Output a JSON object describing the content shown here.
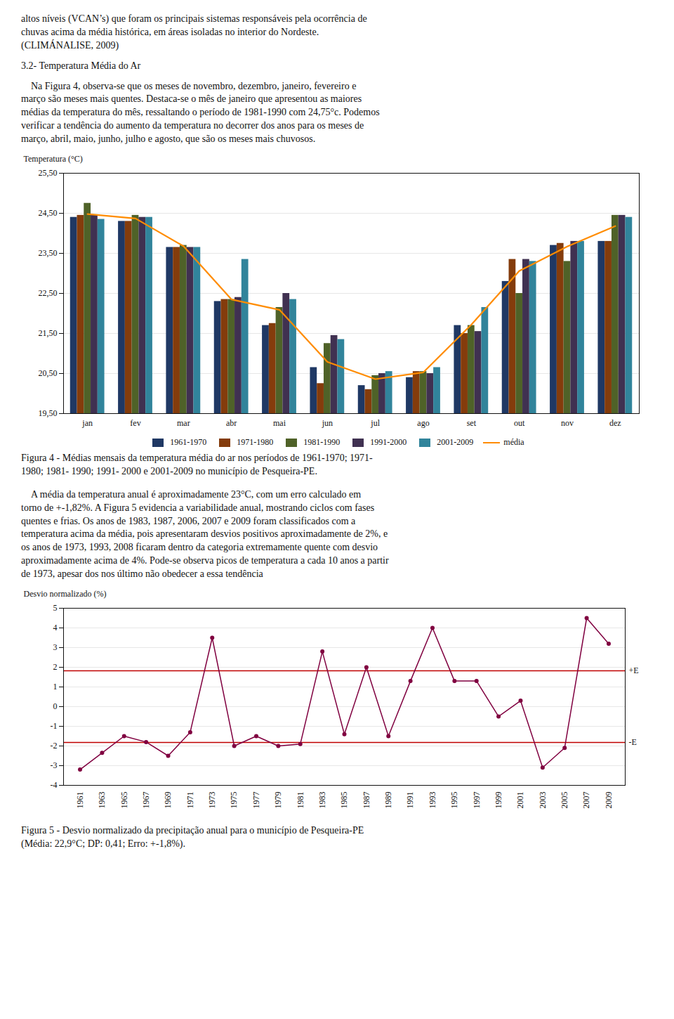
{
  "chart_data": [
    {
      "type": "bar",
      "annotations": [
        "altos níveis (VCAN’s) que foram os principais sistemas responsáveis pela ocorrência de\nchuvas acima da média histórica, em áreas isoladas no interior do Nordeste.\n(CLIMÁNALISE, 2009)",
        "3.2- Temperatura Média do Ar",
        "    Na Figura 4, observa-se que os meses de novembro, dezembro, janeiro, fevereiro e\nmarço são meses mais quentes. Destaca-se o mês de janeiro que apresentou as maiores\nmédias da temperatura do mês, ressaltando o período de 1981-1990 com 24,75°c. Podemos\nverificar a tendência do aumento da temperatura no decorrer dos anos para os meses de\nmarço, abril, maio, junho, julho e agosto, que são os meses mais chuvosos."
      ],
      "caption": "Figura 4 - Médias mensais da temperatura média do ar nos períodos de 1961-1970; 1971-\n1980; 1981- 1990; 1991- 2000 e 2001-2009 no município de Pesqueira-PE.",
      "categories": [
        "jan",
        "fev",
        "mar",
        "abr",
        "mai",
        "jun",
        "jul",
        "ago",
        "set",
        "out",
        "nov",
        "dez"
      ],
      "series": [
        {
          "name": "1961-1970",
          "color": "#1F3864",
          "values": [
            24.4,
            24.3,
            23.65,
            22.3,
            21.7,
            20.65,
            20.2,
            20.4,
            21.7,
            22.8,
            23.7,
            23.8
          ]
        },
        {
          "name": "1971-1980",
          "color": "#843C0C",
          "values": [
            24.45,
            24.3,
            23.65,
            22.35,
            21.75,
            20.25,
            20.1,
            20.55,
            21.5,
            23.35,
            23.75,
            23.8
          ]
        },
        {
          "name": "1981-1990",
          "color": "#4F6228",
          "values": [
            24.75,
            24.45,
            23.7,
            22.35,
            22.15,
            21.25,
            20.45,
            20.55,
            21.7,
            22.5,
            23.3,
            24.45
          ]
        },
        {
          "name": "1991-2000",
          "color": "#403151",
          "values": [
            24.45,
            24.4,
            23.65,
            22.4,
            22.5,
            21.45,
            20.5,
            20.5,
            21.55,
            23.35,
            23.8,
            24.45
          ]
        },
        {
          "name": "2001-2009",
          "color": "#31849B",
          "values": [
            24.35,
            24.4,
            23.65,
            23.35,
            22.35,
            21.35,
            20.55,
            20.65,
            22.15,
            23.3,
            23.8,
            24.4
          ]
        },
        {
          "name": "média",
          "type": "line",
          "color": "#FF8C00",
          "values": [
            24.48,
            24.37,
            23.68,
            22.35,
            22.09,
            20.79,
            20.36,
            20.53,
            21.72,
            23.06,
            23.67,
            24.18
          ]
        }
      ],
      "ylabel": "Temperatura (°C)",
      "ylim": [
        19.5,
        25.5
      ],
      "yticks": [
        {
          "value": 19.5,
          "label": "19,50"
        },
        {
          "value": 20.5,
          "label": "20,50"
        },
        {
          "value": 21.5,
          "label": "21,50"
        },
        {
          "value": 22.5,
          "label": "22,50"
        },
        {
          "value": 23.5,
          "label": "23,50"
        },
        {
          "value": 24.5,
          "label": "24,50"
        },
        {
          "value": 25.5,
          "label": "25,50"
        }
      ],
      "grid": true,
      "legend": "bottom"
    },
    {
      "type": "line",
      "annotations": [
        "    A média da temperatura anual é aproximadamente 23°C, com um erro calculado em\ntorno de +-1,82%. A Figura 5 evidencia a variabilidade anual, mostrando ciclos com fases\nquentes e frias. Os anos de 1983, 1987, 2006, 2007 e 2009 foram classificados com a\ntemperatura acima da média, pois apresentaram desvios positivos aproximadamente de 2%, e\nos anos de 1973, 1993, 2008 ficaram dentro da categoria extremamente quente com desvio\naproximadamente acima de 4%. Pode-se observa picos de temperatura a cada 10 anos a partir\nde 1973, apesar dos nos último não obedecer a essa tendência"
      ],
      "caption": "Figura 5 - Desvio normalizado da precipitação anual para o município de Pesqueira-PE\n(Média: 22,9°C; DP: 0,41; Erro: +-1,8%).",
      "x": [
        1961,
        1963,
        1965,
        1967,
        1969,
        1971,
        1973,
        1975,
        1977,
        1979,
        1981,
        1983,
        1985,
        1987,
        1989,
        1991,
        1993,
        1995,
        1997,
        1999,
        2001,
        2003,
        2005,
        2007,
        2009
      ],
      "values": [
        -3.2,
        -2.35,
        -1.5,
        -1.8,
        -2.5,
        -1.3,
        3.5,
        -2.0,
        -1.5,
        -2.0,
        -1.9,
        2.8,
        -1.4,
        2.0,
        -1.5,
        1.3,
        4.0,
        1.3,
        1.3,
        -0.5,
        0.3,
        -3.1,
        -2.1,
        4.5,
        3.2
      ],
      "color": "#800040",
      "marker": "circle",
      "ref_lines": [
        {
          "y": 1.82,
          "label": "+E",
          "color": "#C00000"
        },
        {
          "y": -1.82,
          "label": "-E",
          "color": "#C00000"
        }
      ],
      "ylabel": "Desvio normalizado (%)",
      "xlim": [
        1959.5,
        2010.5
      ],
      "xticks": [
        1961,
        1963,
        1965,
        1967,
        1969,
        1971,
        1973,
        1975,
        1977,
        1979,
        1981,
        1983,
        1985,
        1987,
        1989,
        1991,
        1993,
        1995,
        1997,
        1999,
        2001,
        2003,
        2005,
        2007,
        2009
      ],
      "ylim": [
        -4,
        5
      ],
      "yticks": [
        -4,
        -3,
        -2,
        -1,
        0,
        1,
        2,
        3,
        4,
        5
      ],
      "grid": true
    }
  ]
}
